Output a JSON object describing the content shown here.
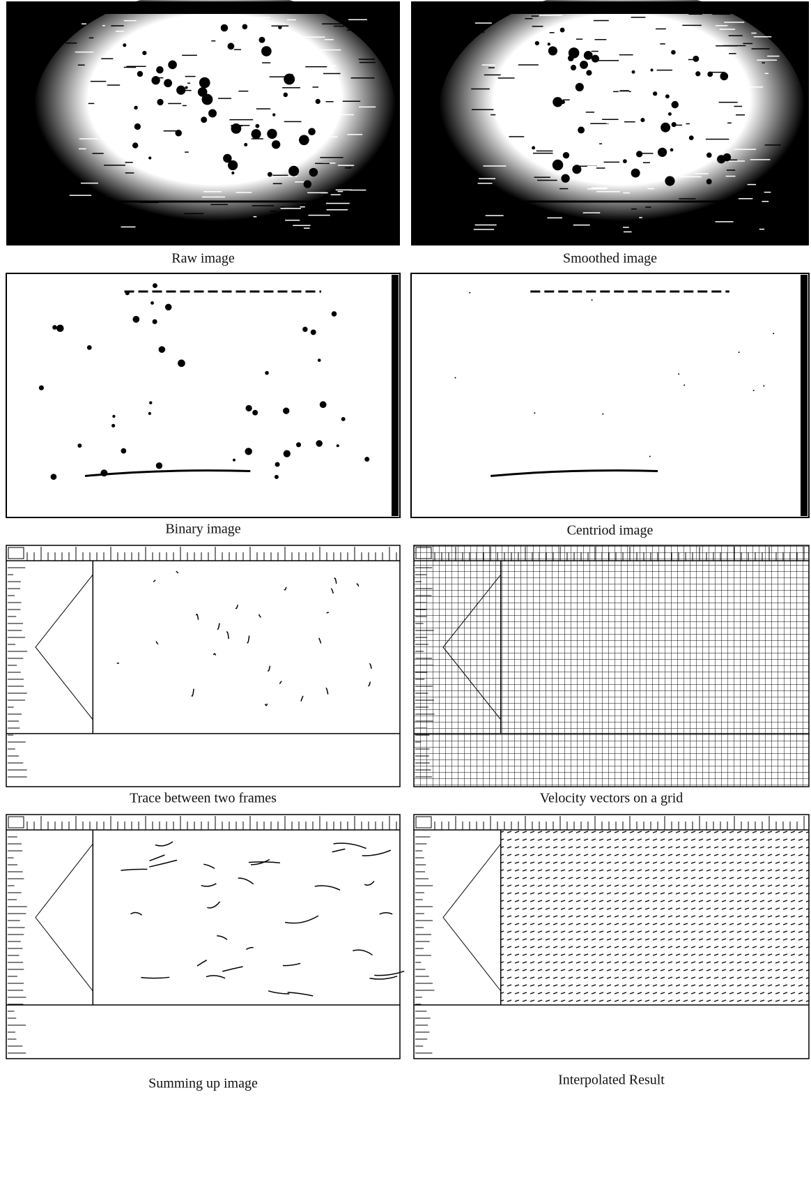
{
  "figure": {
    "panels": [
      {
        "caption": "Raw image"
      },
      {
        "caption": "Smoothed image"
      },
      {
        "caption": "Binary image"
      },
      {
        "caption": "Centriod image"
      },
      {
        "caption": "Trace between two frames"
      },
      {
        "caption": "Velocity vectors on a grid"
      },
      {
        "caption": "Summing up image"
      },
      {
        "caption": "Interpolated Result"
      }
    ]
  }
}
